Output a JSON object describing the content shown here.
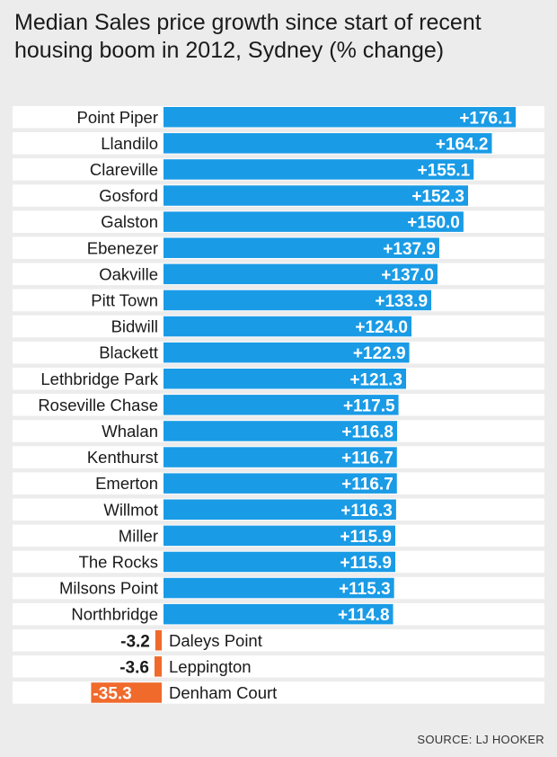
{
  "chart_data": {
    "type": "bar",
    "title": "Median Sales price growth since start of recent housing boom in 2012, Sydney (% change)",
    "source": "SOURCE: LJ HOOKER",
    "colors": {
      "positive": "#1a9be6",
      "negative": "#f06a2c",
      "row_background": "#ffffff",
      "page_background": "#ececec"
    },
    "categories": [
      "Point Piper",
      "Llandilo",
      "Clareville",
      "Gosford",
      "Galston",
      "Ebenezer",
      "Oakville",
      "Pitt Town",
      "Bidwill",
      "Blackett",
      "Lethbridge Park",
      "Roseville Chase",
      "Whalan",
      "Kenthurst",
      "Emerton",
      "Willmot",
      "Miller",
      "The Rocks",
      "Milsons Point",
      "Northbridge",
      "Daleys Point",
      "Leppington",
      "Denham Court"
    ],
    "values": [
      176.1,
      164.2,
      155.1,
      152.3,
      150.0,
      137.9,
      137.0,
      133.9,
      124.0,
      122.9,
      121.3,
      117.5,
      116.8,
      116.7,
      116.7,
      116.3,
      115.9,
      115.9,
      115.3,
      114.8,
      -3.2,
      -3.6,
      -35.3
    ],
    "labels": [
      "+176.1",
      "+164.2",
      "+155.1",
      "+152.3",
      "+150.0",
      "+137.9",
      "+137.0",
      "+133.9",
      "+124.0",
      "+122.9",
      "+121.3",
      "+117.5",
      "+116.8",
      "+116.7",
      "+116.7",
      "+116.3",
      "+115.9",
      "+115.9",
      "+115.3",
      "+114.8",
      "-3.2",
      "-3.6",
      "-35.3"
    ]
  }
}
